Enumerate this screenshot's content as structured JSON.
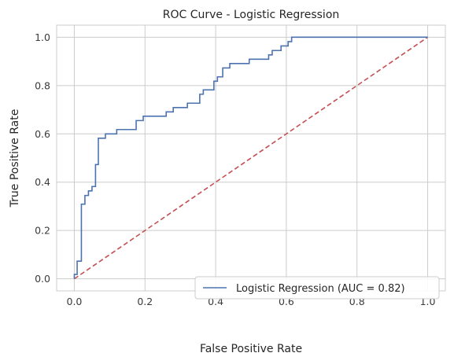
{
  "chart_data": {
    "type": "line",
    "title": "ROC Curve - Logistic Regression",
    "xlabel": "False Positive Rate",
    "ylabel": "True Positive Rate",
    "xlim": [
      -0.05,
      1.05
    ],
    "ylim": [
      -0.05,
      1.05
    ],
    "xticks": [
      0.0,
      0.2,
      0.4,
      0.6,
      0.8,
      1.0
    ],
    "yticks": [
      0.0,
      0.2,
      0.4,
      0.6,
      0.8,
      1.0
    ],
    "xtick_labels": [
      "0.0",
      "0.2",
      "0.4",
      "0.6",
      "0.8",
      "1.0"
    ],
    "ytick_labels": [
      "0.0",
      "0.2",
      "0.4",
      "0.6",
      "0.8",
      "1.0"
    ],
    "grid": true,
    "legend_position": "lower-right",
    "series": [
      {
        "name": "Logistic Regression (AUC = 0.82)",
        "color": "#4c72b0",
        "style": "step",
        "points": [
          [
            0.0,
            0.0
          ],
          [
            0.0,
            0.018
          ],
          [
            0.008,
            0.018
          ],
          [
            0.008,
            0.073
          ],
          [
            0.02,
            0.073
          ],
          [
            0.02,
            0.309
          ],
          [
            0.03,
            0.309
          ],
          [
            0.03,
            0.345
          ],
          [
            0.04,
            0.345
          ],
          [
            0.04,
            0.364
          ],
          [
            0.05,
            0.364
          ],
          [
            0.05,
            0.382
          ],
          [
            0.06,
            0.382
          ],
          [
            0.06,
            0.473
          ],
          [
            0.068,
            0.473
          ],
          [
            0.068,
            0.582
          ],
          [
            0.088,
            0.582
          ],
          [
            0.088,
            0.6
          ],
          [
            0.12,
            0.6
          ],
          [
            0.12,
            0.618
          ],
          [
            0.175,
            0.618
          ],
          [
            0.175,
            0.655
          ],
          [
            0.195,
            0.655
          ],
          [
            0.195,
            0.673
          ],
          [
            0.26,
            0.673
          ],
          [
            0.26,
            0.691
          ],
          [
            0.28,
            0.691
          ],
          [
            0.28,
            0.709
          ],
          [
            0.32,
            0.709
          ],
          [
            0.32,
            0.727
          ],
          [
            0.355,
            0.727
          ],
          [
            0.355,
            0.764
          ],
          [
            0.365,
            0.764
          ],
          [
            0.365,
            0.782
          ],
          [
            0.395,
            0.782
          ],
          [
            0.395,
            0.818
          ],
          [
            0.405,
            0.818
          ],
          [
            0.405,
            0.836
          ],
          [
            0.42,
            0.836
          ],
          [
            0.42,
            0.873
          ],
          [
            0.44,
            0.873
          ],
          [
            0.44,
            0.891
          ],
          [
            0.495,
            0.891
          ],
          [
            0.495,
            0.909
          ],
          [
            0.55,
            0.909
          ],
          [
            0.55,
            0.927
          ],
          [
            0.56,
            0.927
          ],
          [
            0.56,
            0.945
          ],
          [
            0.585,
            0.945
          ],
          [
            0.585,
            0.964
          ],
          [
            0.605,
            0.964
          ],
          [
            0.605,
            0.982
          ],
          [
            0.615,
            0.982
          ],
          [
            0.615,
            1.0
          ],
          [
            1.0,
            1.0
          ]
        ]
      },
      {
        "name": "",
        "color": "#c44e52",
        "style": "dashed",
        "points": [
          [
            0.0,
            0.0
          ],
          [
            1.0,
            1.0
          ]
        ]
      }
    ]
  }
}
